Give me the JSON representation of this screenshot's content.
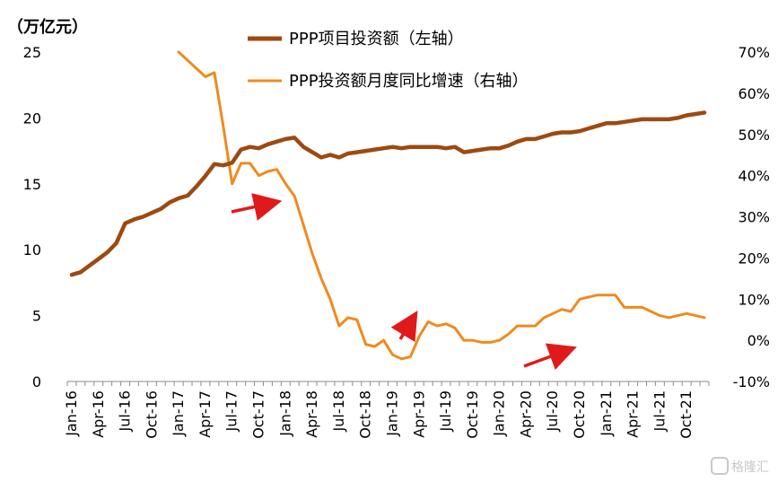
{
  "chart_data": {
    "type": "line",
    "left_unit": "（万亿元）",
    "left_axis": {
      "min": 0,
      "max": 25,
      "ticks": [
        "0",
        "5",
        "10",
        "15",
        "20",
        "25"
      ]
    },
    "right_axis": {
      "min": -10,
      "max": 70,
      "ticks": [
        "-10%",
        "0%",
        "10%",
        "20%",
        "30%",
        "40%",
        "50%",
        "60%",
        "70%"
      ]
    },
    "x_start_month": "2016-01",
    "x_tick_labels": [
      "Jan-16",
      "Apr-16",
      "Jul-16",
      "Oct-16",
      "Jan-17",
      "Apr-17",
      "Jul-17",
      "Oct-17",
      "Jan-18",
      "Apr-18",
      "Jul-18",
      "Oct-18",
      "Jan-19",
      "Apr-19",
      "Jul-19",
      "Oct-19",
      "Jan-20",
      "Apr-20",
      "Jul-20",
      "Oct-20",
      "Jan-21",
      "Apr-21",
      "Jul-21",
      "Oct-21"
    ],
    "grid": false,
    "legend_position": "top-center",
    "series": [
      {
        "name": "PPP项目投资额（左轴）",
        "axis": "left",
        "color": "#9c4a12",
        "values": [
          8.1,
          8.3,
          8.8,
          9.3,
          9.8,
          10.5,
          12.0,
          12.3,
          12.5,
          12.8,
          13.1,
          13.6,
          13.9,
          14.1,
          14.8,
          15.6,
          16.5,
          16.4,
          16.6,
          17.6,
          17.8,
          17.7,
          18.0,
          18.2,
          18.4,
          18.5,
          17.8,
          17.4,
          17.0,
          17.2,
          17.0,
          17.3,
          17.4,
          17.5,
          17.6,
          17.7,
          17.8,
          17.7,
          17.8,
          17.8,
          17.8,
          17.8,
          17.7,
          17.8,
          17.4,
          17.5,
          17.6,
          17.7,
          17.7,
          17.9,
          18.2,
          18.4,
          18.4,
          18.6,
          18.8,
          18.9,
          18.9,
          19.0,
          19.2,
          19.4,
          19.6,
          19.6,
          19.7,
          19.8,
          19.9,
          19.9,
          19.9,
          19.9,
          20.0,
          20.2,
          20.3,
          20.4
        ]
      },
      {
        "name": "PPP投资额月度同比增速（右轴）",
        "axis": "right",
        "color": "#f08a1c",
        "start_index": 12,
        "values": [
          70,
          68,
          66,
          64,
          65,
          52,
          38,
          43,
          43,
          40,
          41,
          41.5,
          38,
          35,
          28,
          21,
          15,
          10,
          3.5,
          5.5,
          5,
          -1,
          -1.5,
          0,
          -3.5,
          -4.5,
          -4,
          1,
          4.5,
          3.5,
          4,
          3,
          0,
          0,
          -0.5,
          -0.5,
          0,
          1.5,
          3.5,
          3.5,
          3.5,
          5.5,
          6.5,
          7.5,
          7,
          10,
          10.5,
          11,
          11,
          11,
          8,
          8,
          8,
          7,
          6,
          5.5,
          6,
          6.5,
          6,
          5.5
        ]
      }
    ],
    "annotations": [
      "arrow",
      "arrow",
      "arrow",
      "arrow"
    ]
  },
  "watermark": {
    "text": "格隆汇"
  }
}
